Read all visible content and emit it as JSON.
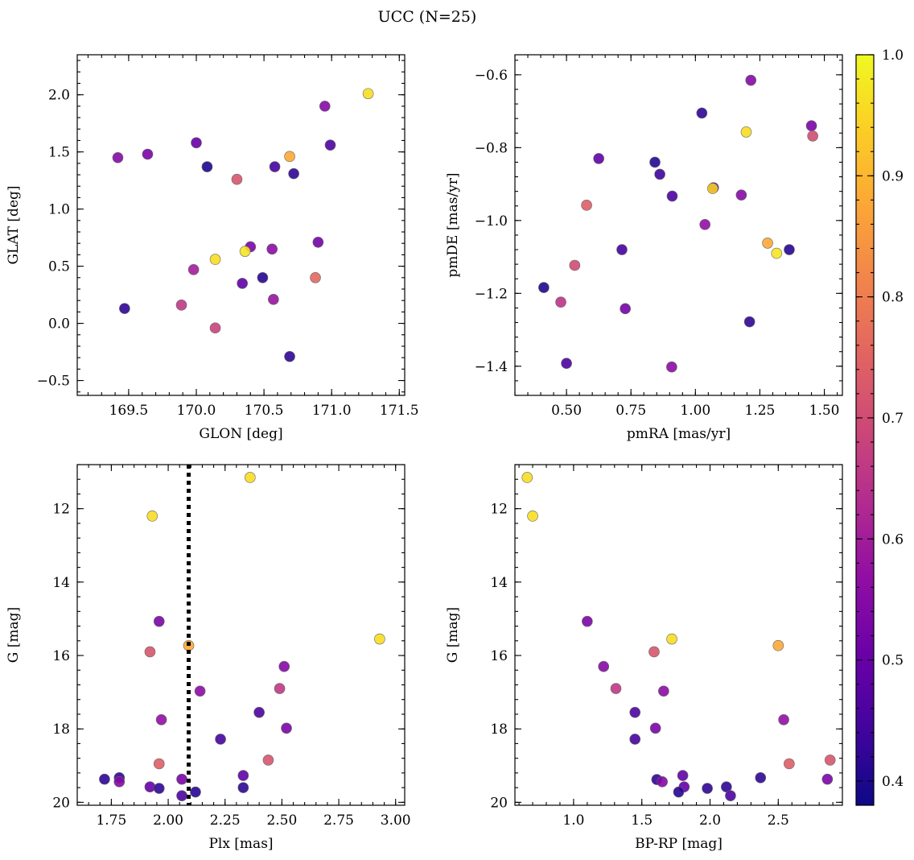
{
  "figure": {
    "suptitle": "UCC (N=25)"
  },
  "colorbar": {
    "colormap": "plasma",
    "min": 0.38,
    "max": 1.0,
    "ticks": [
      0.4,
      0.5,
      0.6,
      0.7,
      0.8,
      0.9,
      1.0
    ],
    "tick_labels": [
      "0.4",
      "0.5",
      "0.6",
      "0.7",
      "0.8",
      "0.9",
      "1.0"
    ]
  },
  "chart_data": [
    {
      "type": "scatter",
      "xlabel": "GLON [deg]",
      "ylabel": "GLAT [deg]",
      "xlim": [
        169.12,
        171.54
      ],
      "ylim": [
        -0.63,
        2.35
      ],
      "xticks": [
        169.5,
        170.0,
        170.5,
        171.0,
        171.5
      ],
      "xtick_labels": [
        "169.5",
        "170.0",
        "170.5",
        "171.0",
        "171.5"
      ],
      "yticks": [
        -0.5,
        0.0,
        0.5,
        1.0,
        1.5,
        2.0
      ],
      "ytick_labels": [
        "−0.5",
        "0.0",
        "0.5",
        "1.0",
        "1.5",
        "2.0"
      ],
      "points": [
        {
          "x": 171.27,
          "y": 2.01,
          "c": 0.96
        },
        {
          "x": 170.95,
          "y": 1.9,
          "c": 0.55
        },
        {
          "x": 169.42,
          "y": 1.45,
          "c": 0.55
        },
        {
          "x": 169.64,
          "y": 1.48,
          "c": 0.53
        },
        {
          "x": 170.0,
          "y": 1.58,
          "c": 0.5
        },
        {
          "x": 170.99,
          "y": 1.56,
          "c": 0.46
        },
        {
          "x": 170.69,
          "y": 1.46,
          "c": 0.88
        },
        {
          "x": 170.08,
          "y": 1.37,
          "c": 0.4
        },
        {
          "x": 170.58,
          "y": 1.37,
          "c": 0.45
        },
        {
          "x": 170.72,
          "y": 1.31,
          "c": 0.42
        },
        {
          "x": 170.3,
          "y": 1.26,
          "c": 0.72
        },
        {
          "x": 170.9,
          "y": 0.71,
          "c": 0.52
        },
        {
          "x": 170.4,
          "y": 0.67,
          "c": 0.53
        },
        {
          "x": 170.56,
          "y": 0.65,
          "c": 0.56
        },
        {
          "x": 170.36,
          "y": 0.63,
          "c": 0.97
        },
        {
          "x": 170.14,
          "y": 0.56,
          "c": 0.96
        },
        {
          "x": 169.98,
          "y": 0.47,
          "c": 0.6
        },
        {
          "x": 170.49,
          "y": 0.4,
          "c": 0.41
        },
        {
          "x": 170.88,
          "y": 0.4,
          "c": 0.76
        },
        {
          "x": 170.34,
          "y": 0.35,
          "c": 0.49
        },
        {
          "x": 170.57,
          "y": 0.21,
          "c": 0.58
        },
        {
          "x": 169.89,
          "y": 0.16,
          "c": 0.66
        },
        {
          "x": 169.47,
          "y": 0.13,
          "c": 0.42
        },
        {
          "x": 170.14,
          "y": -0.04,
          "c": 0.68
        },
        {
          "x": 170.69,
          "y": -0.29,
          "c": 0.42
        }
      ]
    },
    {
      "type": "scatter",
      "xlabel": "pmRA [mas/yr]",
      "ylabel": "pmDE [mas/yr]",
      "xlim": [
        0.3,
        1.57
      ],
      "ylim": [
        -1.48,
        -0.545
      ],
      "xticks": [
        0.5,
        0.75,
        1.0,
        1.25,
        1.5
      ],
      "xtick_labels": [
        "0.50",
        "0.75",
        "1.00",
        "1.25",
        "1.50"
      ],
      "yticks": [
        -1.4,
        -1.2,
        -1.0,
        -0.8,
        -0.6
      ],
      "ytick_labels": [
        "−1.4",
        "−1.2",
        "−1.0",
        "−0.8",
        "−0.6"
      ],
      "points": [
        {
          "x": 1.215,
          "y": -0.615,
          "c": 0.55
        },
        {
          "x": 1.025,
          "y": -0.705,
          "c": 0.42
        },
        {
          "x": 1.45,
          "y": -0.74,
          "c": 0.53
        },
        {
          "x": 1.455,
          "y": -0.768,
          "c": 0.7
        },
        {
          "x": 1.197,
          "y": -0.757,
          "c": 0.96
        },
        {
          "x": 0.625,
          "y": -0.83,
          "c": 0.49
        },
        {
          "x": 0.843,
          "y": -0.84,
          "c": 0.41
        },
        {
          "x": 0.862,
          "y": -0.873,
          "c": 0.44
        },
        {
          "x": 1.07,
          "y": -0.91,
          "c": 0.44
        },
        {
          "x": 1.067,
          "y": -0.912,
          "c": 0.94
        },
        {
          "x": 0.91,
          "y": -0.933,
          "c": 0.46
        },
        {
          "x": 1.178,
          "y": -0.93,
          "c": 0.55
        },
        {
          "x": 0.578,
          "y": -0.958,
          "c": 0.74
        },
        {
          "x": 1.037,
          "y": -1.011,
          "c": 0.57
        },
        {
          "x": 1.28,
          "y": -1.062,
          "c": 0.88
        },
        {
          "x": 1.315,
          "y": -1.09,
          "c": 0.97
        },
        {
          "x": 0.715,
          "y": -1.08,
          "c": 0.45
        },
        {
          "x": 1.364,
          "y": -1.08,
          "c": 0.41
        },
        {
          "x": 0.532,
          "y": -1.123,
          "c": 0.7
        },
        {
          "x": 0.412,
          "y": -1.184,
          "c": 0.4
        },
        {
          "x": 0.478,
          "y": -1.224,
          "c": 0.65
        },
        {
          "x": 0.728,
          "y": -1.242,
          "c": 0.52
        },
        {
          "x": 1.21,
          "y": -1.278,
          "c": 0.42
        },
        {
          "x": 0.5,
          "y": -1.392,
          "c": 0.46
        },
        {
          "x": 0.908,
          "y": -1.402,
          "c": 0.56
        }
      ]
    },
    {
      "type": "scatter",
      "xlabel": "Plx [mas]",
      "ylabel": "G [mag]",
      "xlim": [
        1.6,
        3.04
      ],
      "ylim": [
        20.08,
        10.8
      ],
      "y_inverted": true,
      "xticks": [
        1.75,
        2.0,
        2.25,
        2.5,
        2.75,
        3.0
      ],
      "xtick_labels": [
        "1.75",
        "2.00",
        "2.25",
        "2.50",
        "2.75",
        "3.00"
      ],
      "yticks": [
        12,
        14,
        16,
        18,
        20
      ],
      "ytick_labels": [
        "12",
        "14",
        "16",
        "18",
        "20"
      ],
      "vline": {
        "x": 2.09,
        "style": "dotted",
        "color": "#000000"
      },
      "points": [
        {
          "x": 2.36,
          "y": 11.15,
          "c": 0.96
        },
        {
          "x": 1.93,
          "y": 12.2,
          "c": 0.96
        },
        {
          "x": 1.96,
          "y": 15.07,
          "c": 0.53
        },
        {
          "x": 2.93,
          "y": 15.55,
          "c": 0.96
        },
        {
          "x": 2.09,
          "y": 15.73,
          "c": 0.88
        },
        {
          "x": 1.92,
          "y": 15.9,
          "c": 0.72
        },
        {
          "x": 2.51,
          "y": 16.3,
          "c": 0.55
        },
        {
          "x": 2.49,
          "y": 16.9,
          "c": 0.66
        },
        {
          "x": 2.14,
          "y": 16.97,
          "c": 0.56
        },
        {
          "x": 2.4,
          "y": 17.55,
          "c": 0.46
        },
        {
          "x": 1.97,
          "y": 17.75,
          "c": 0.57
        },
        {
          "x": 2.52,
          "y": 17.98,
          "c": 0.53
        },
        {
          "x": 2.23,
          "y": 18.28,
          "c": 0.45
        },
        {
          "x": 2.44,
          "y": 18.85,
          "c": 0.72
        },
        {
          "x": 1.96,
          "y": 18.95,
          "c": 0.74
        },
        {
          "x": 2.33,
          "y": 19.27,
          "c": 0.49
        },
        {
          "x": 1.72,
          "y": 19.37,
          "c": 0.42
        },
        {
          "x": 1.785,
          "y": 19.33,
          "c": 0.42
        },
        {
          "x": 1.785,
          "y": 19.44,
          "c": 0.55
        },
        {
          "x": 2.06,
          "y": 19.37,
          "c": 0.53
        },
        {
          "x": 1.92,
          "y": 19.58,
          "c": 0.5
        },
        {
          "x": 1.96,
          "y": 19.62,
          "c": 0.42
        },
        {
          "x": 2.33,
          "y": 19.6,
          "c": 0.42
        },
        {
          "x": 2.06,
          "y": 19.82,
          "c": 0.46
        },
        {
          "x": 2.12,
          "y": 19.72,
          "c": 0.41
        }
      ]
    },
    {
      "type": "scatter",
      "xlabel": "BP-RP [mag]",
      "ylabel": "G [mag]",
      "xlim": [
        0.57,
        2.97
      ],
      "ylim": [
        20.08,
        10.8
      ],
      "y_inverted": true,
      "xticks": [
        1.0,
        1.5,
        2.0,
        2.5
      ],
      "xtick_labels": [
        "1.0",
        "1.5",
        "2.0",
        "2.5"
      ],
      "yticks": [
        12,
        14,
        16,
        18,
        20
      ],
      "ytick_labels": [
        "12",
        "14",
        "16",
        "18",
        "20"
      ],
      "points": [
        {
          "x": 0.66,
          "y": 11.15,
          "c": 0.96
        },
        {
          "x": 0.7,
          "y": 12.2,
          "c": 0.96
        },
        {
          "x": 1.1,
          "y": 15.07,
          "c": 0.53
        },
        {
          "x": 1.72,
          "y": 15.55,
          "c": 0.96
        },
        {
          "x": 2.5,
          "y": 15.73,
          "c": 0.88
        },
        {
          "x": 1.59,
          "y": 15.9,
          "c": 0.72
        },
        {
          "x": 1.22,
          "y": 16.3,
          "c": 0.55
        },
        {
          "x": 1.31,
          "y": 16.9,
          "c": 0.66
        },
        {
          "x": 1.66,
          "y": 16.97,
          "c": 0.56
        },
        {
          "x": 1.45,
          "y": 17.55,
          "c": 0.46
        },
        {
          "x": 2.54,
          "y": 17.75,
          "c": 0.57
        },
        {
          "x": 1.6,
          "y": 17.98,
          "c": 0.53
        },
        {
          "x": 1.45,
          "y": 18.28,
          "c": 0.45
        },
        {
          "x": 2.88,
          "y": 18.85,
          "c": 0.72
        },
        {
          "x": 2.58,
          "y": 18.95,
          "c": 0.74
        },
        {
          "x": 1.8,
          "y": 19.27,
          "c": 0.49
        },
        {
          "x": 2.37,
          "y": 19.33,
          "c": 0.42
        },
        {
          "x": 2.86,
          "y": 19.37,
          "c": 0.53
        },
        {
          "x": 1.61,
          "y": 19.38,
          "c": 0.42
        },
        {
          "x": 1.65,
          "y": 19.44,
          "c": 0.55
        },
        {
          "x": 1.81,
          "y": 19.58,
          "c": 0.5
        },
        {
          "x": 2.12,
          "y": 19.58,
          "c": 0.42
        },
        {
          "x": 1.98,
          "y": 19.62,
          "c": 0.42
        },
        {
          "x": 1.77,
          "y": 19.72,
          "c": 0.41
        },
        {
          "x": 2.15,
          "y": 19.82,
          "c": 0.46
        }
      ]
    }
  ]
}
